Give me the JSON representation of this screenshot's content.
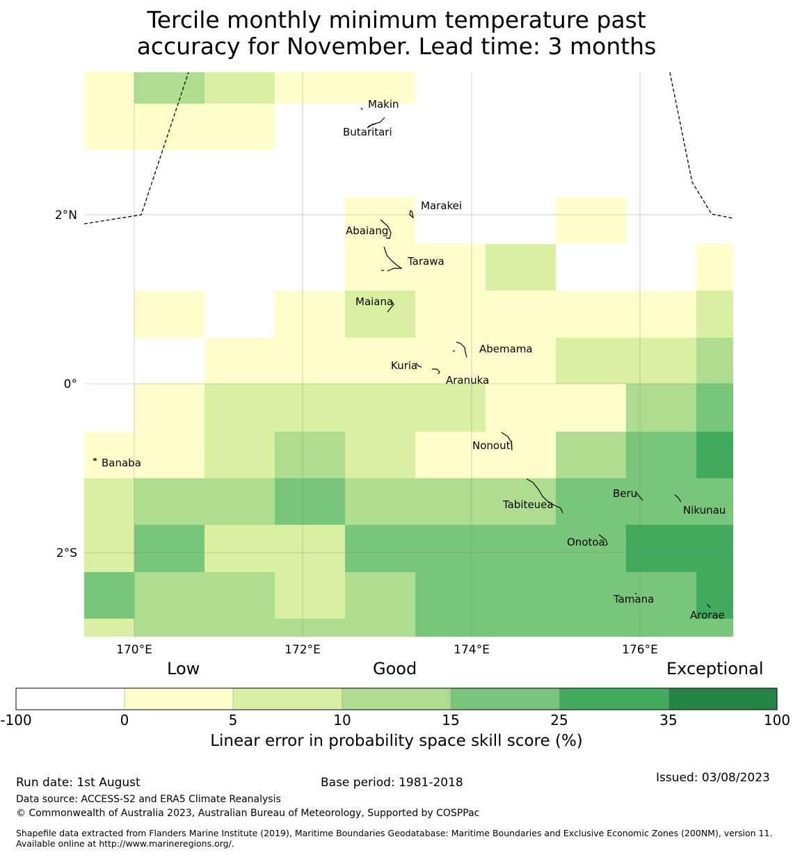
{
  "title_line1": "Tercile monthly minimum temperature past",
  "title_line2": "accuracy for November. Lead time: 3 months",
  "map": {
    "lon_ticks": [
      "170°E",
      "172°E",
      "174°E",
      "176°E"
    ],
    "lat_ticks": [
      "2°N",
      "0°",
      "2°S"
    ],
    "places": [
      {
        "name": "Makin"
      },
      {
        "name": "Butaritari"
      },
      {
        "name": "Marakei"
      },
      {
        "name": "Abaiang"
      },
      {
        "name": "Tarawa"
      },
      {
        "name": "Maiana"
      },
      {
        "name": "Abemama"
      },
      {
        "name": "Kuria"
      },
      {
        "name": "Aranuka"
      },
      {
        "name": "Nonouti"
      },
      {
        "name": "Banaba"
      },
      {
        "name": "Tabiteuea"
      },
      {
        "name": "Beru"
      },
      {
        "name": "Nikunau"
      },
      {
        "name": "Onotoa"
      },
      {
        "name": "Tamana"
      },
      {
        "name": "Arorae"
      }
    ],
    "skill_grid_category_index": [
      [
        1,
        3,
        2,
        1,
        1,
        0,
        0,
        0,
        0,
        0
      ],
      [
        1,
        1,
        1,
        0,
        0,
        0,
        0,
        0,
        0,
        0
      ],
      [
        0,
        0,
        0,
        0,
        0,
        0,
        0,
        0,
        0,
        0
      ],
      [
        0,
        0,
        0,
        0,
        1,
        0,
        0,
        1,
        0,
        0
      ],
      [
        0,
        0,
        0,
        0,
        1,
        1,
        2,
        0,
        0,
        1
      ],
      [
        0,
        1,
        0,
        1,
        2,
        1,
        1,
        1,
        1,
        2
      ],
      [
        0,
        0,
        1,
        1,
        1,
        1,
        1,
        2,
        2,
        3
      ],
      [
        0,
        1,
        2,
        2,
        2,
        2,
        1,
        1,
        3,
        4
      ],
      [
        1,
        1,
        2,
        3,
        2,
        1,
        1,
        3,
        4,
        5
      ],
      [
        2,
        3,
        3,
        4,
        3,
        3,
        3,
        4,
        4,
        4
      ],
      [
        2,
        4,
        2,
        2,
        4,
        4,
        4,
        4,
        5,
        5
      ],
      [
        4,
        3,
        3,
        2,
        3,
        4,
        4,
        4,
        4,
        5
      ],
      [
        2,
        3,
        3,
        3,
        3,
        4,
        4,
        4,
        4,
        4
      ]
    ]
  },
  "colorbar": {
    "words": {
      "low": "Low",
      "good": "Good",
      "exceptional": "Exceptional"
    },
    "bounds": [
      "-100",
      "0",
      "5",
      "10",
      "15",
      "25",
      "35",
      "100"
    ],
    "colors": [
      "#ffffff",
      "#ffffcc",
      "#d9f0a3",
      "#addd8e",
      "#78c679",
      "#41ab5d",
      "#238443"
    ],
    "label": "Linear error in probability space skill score (%)"
  },
  "footer": {
    "run_date": "Run date: 1st August",
    "base_period": "Base period: 1981-2018",
    "issued": "Issued: 03/08/2023",
    "data_source": "Data source: ACCESS-S2 and ERA5 Climate Reanalysis",
    "copyright": "© Commonwealth of Australia 2023, Australian Bureau of Meteorology, Supported by COSPPac",
    "shapefile": "Shapefile data extracted from Flanders Marine Institute (2019), Maritime Boundaries Geodatabase: Maritime Boundaries and Exclusive Economic Zones (200NM), version 11. Available online at http://www.marineregions.org/."
  }
}
